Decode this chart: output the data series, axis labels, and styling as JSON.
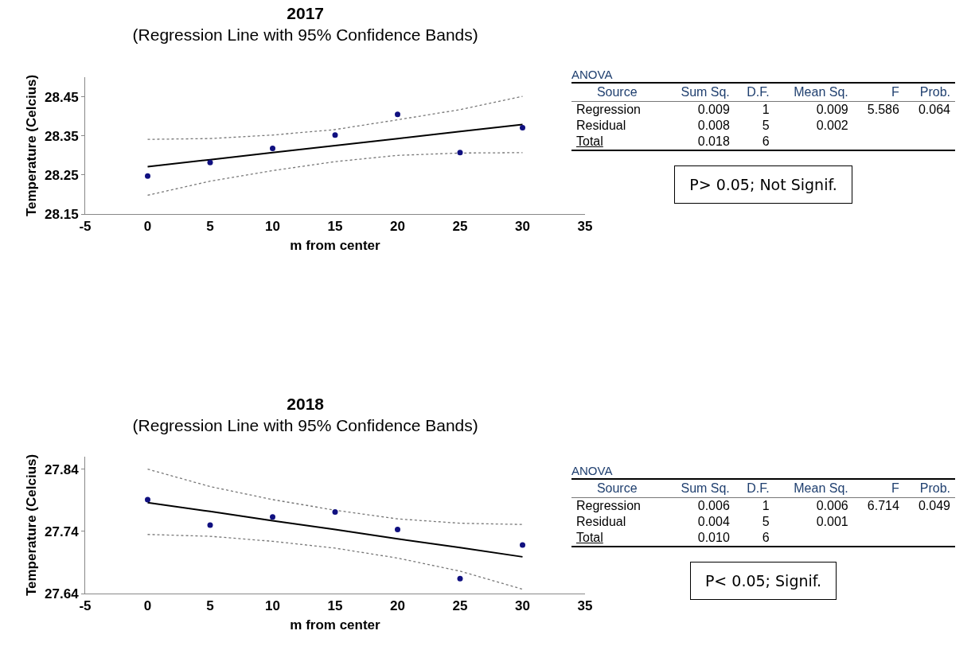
{
  "chart_data": [
    {
      "type": "scatter",
      "title": "2017",
      "subtitle": "(Regression Line with 95% Confidence Bands)",
      "xlabel": "m from center",
      "ylabel": "Temperature (Celcius)",
      "xlim": [
        -5,
        35
      ],
      "xticks": [
        -5,
        0,
        5,
        10,
        15,
        20,
        25,
        30,
        35
      ],
      "ylim": [
        28.15,
        28.5
      ],
      "yticks": [
        28.15,
        28.25,
        28.35,
        28.45
      ],
      "grid": false,
      "series": [
        {
          "type": "scatter",
          "color": "#101080",
          "marker": "circle",
          "x": [
            0,
            5,
            10,
            15,
            20,
            25,
            30
          ],
          "values": [
            28.247,
            28.282,
            28.318,
            28.352,
            28.405,
            28.307,
            28.371
          ]
        },
        {
          "type": "line",
          "color": "#000000",
          "line_style": "solid",
          "marker": "none",
          "x": [
            0,
            5,
            10,
            15,
            20,
            25,
            30
          ],
          "values": [
            28.271,
            28.289,
            28.307,
            28.325,
            28.343,
            28.361,
            28.379
          ]
        },
        {
          "type": "line",
          "color": "#777777",
          "line_style": "dotted",
          "marker": "none",
          "x": [
            0,
            5,
            10,
            15,
            20,
            25,
            30
          ],
          "values": [
            28.341,
            28.343,
            28.352,
            28.366,
            28.391,
            28.417,
            28.451
          ]
        },
        {
          "type": "line",
          "color": "#777777",
          "line_style": "dotted",
          "marker": "none",
          "x": [
            0,
            5,
            10,
            15,
            20,
            25,
            30
          ],
          "values": [
            28.198,
            28.234,
            28.261,
            28.284,
            28.3,
            28.306,
            28.307
          ]
        }
      ]
    },
    {
      "type": "other",
      "title": "ANOVA",
      "categories": [
        "Source",
        "Sum Sq.",
        "D.F.",
        "Mean Sq.",
        "F",
        "Prob."
      ],
      "y_categories": [
        "Regression",
        "Residual",
        "Total"
      ],
      "cell_labels": [
        [
          "0.009",
          "1",
          "0.009",
          "5.586",
          "0.064"
        ],
        [
          "0.008",
          "5",
          "0.002",
          null,
          null
        ],
        [
          "0.018",
          "6",
          null,
          null,
          null
        ]
      ],
      "annotations": [
        "P> 0.05; Not Signif."
      ]
    },
    {
      "type": "scatter",
      "title": "2018",
      "subtitle": "(Regression Line with 95% Confidence Bands)",
      "xlabel": "m from center",
      "ylabel": "Temperature (Celcius)",
      "xlim": [
        -5,
        35
      ],
      "xticks": [
        -5,
        0,
        5,
        10,
        15,
        20,
        25,
        30,
        35
      ],
      "ylim": [
        27.64,
        27.86
      ],
      "yticks": [
        27.64,
        27.74,
        27.84
      ],
      "grid": false,
      "series": [
        {
          "type": "scatter",
          "color": "#101080",
          "marker": "circle",
          "x": [
            0,
            5,
            10,
            15,
            20,
            25,
            30
          ],
          "values": [
            27.791,
            27.75,
            27.763,
            27.771,
            27.743,
            27.664,
            27.718
          ]
        },
        {
          "type": "line",
          "color": "#000000",
          "line_style": "solid",
          "marker": "none",
          "x": [
            0,
            5,
            10,
            15,
            20,
            25,
            30
          ],
          "values": [
            27.786,
            27.772,
            27.757,
            27.743,
            27.728,
            27.714,
            27.699
          ]
        },
        {
          "type": "line",
          "color": "#777777",
          "line_style": "dotted",
          "marker": "none",
          "x": [
            0,
            5,
            10,
            15,
            20,
            25,
            30
          ],
          "values": [
            27.84,
            27.812,
            27.791,
            27.774,
            27.76,
            27.753,
            27.751
          ]
        },
        {
          "type": "line",
          "color": "#777777",
          "line_style": "dotted",
          "marker": "none",
          "x": [
            0,
            5,
            10,
            15,
            20,
            25,
            30
          ],
          "values": [
            27.735,
            27.732,
            27.724,
            27.713,
            27.697,
            27.676,
            27.647
          ]
        }
      ]
    },
    {
      "type": "other",
      "title": "ANOVA",
      "categories": [
        "Source",
        "Sum Sq.",
        "D.F.",
        "Mean Sq.",
        "F",
        "Prob."
      ],
      "y_categories": [
        "Regression",
        "Residual",
        "Total"
      ],
      "cell_labels": [
        [
          "0.006",
          "1",
          "0.006",
          "6.714",
          "0.049"
        ],
        [
          "0.004",
          "5",
          "0.001",
          null,
          null
        ],
        [
          "0.010",
          "6",
          null,
          null,
          null
        ]
      ],
      "annotations": [
        "P< 0.05; Signif."
      ]
    }
  ]
}
